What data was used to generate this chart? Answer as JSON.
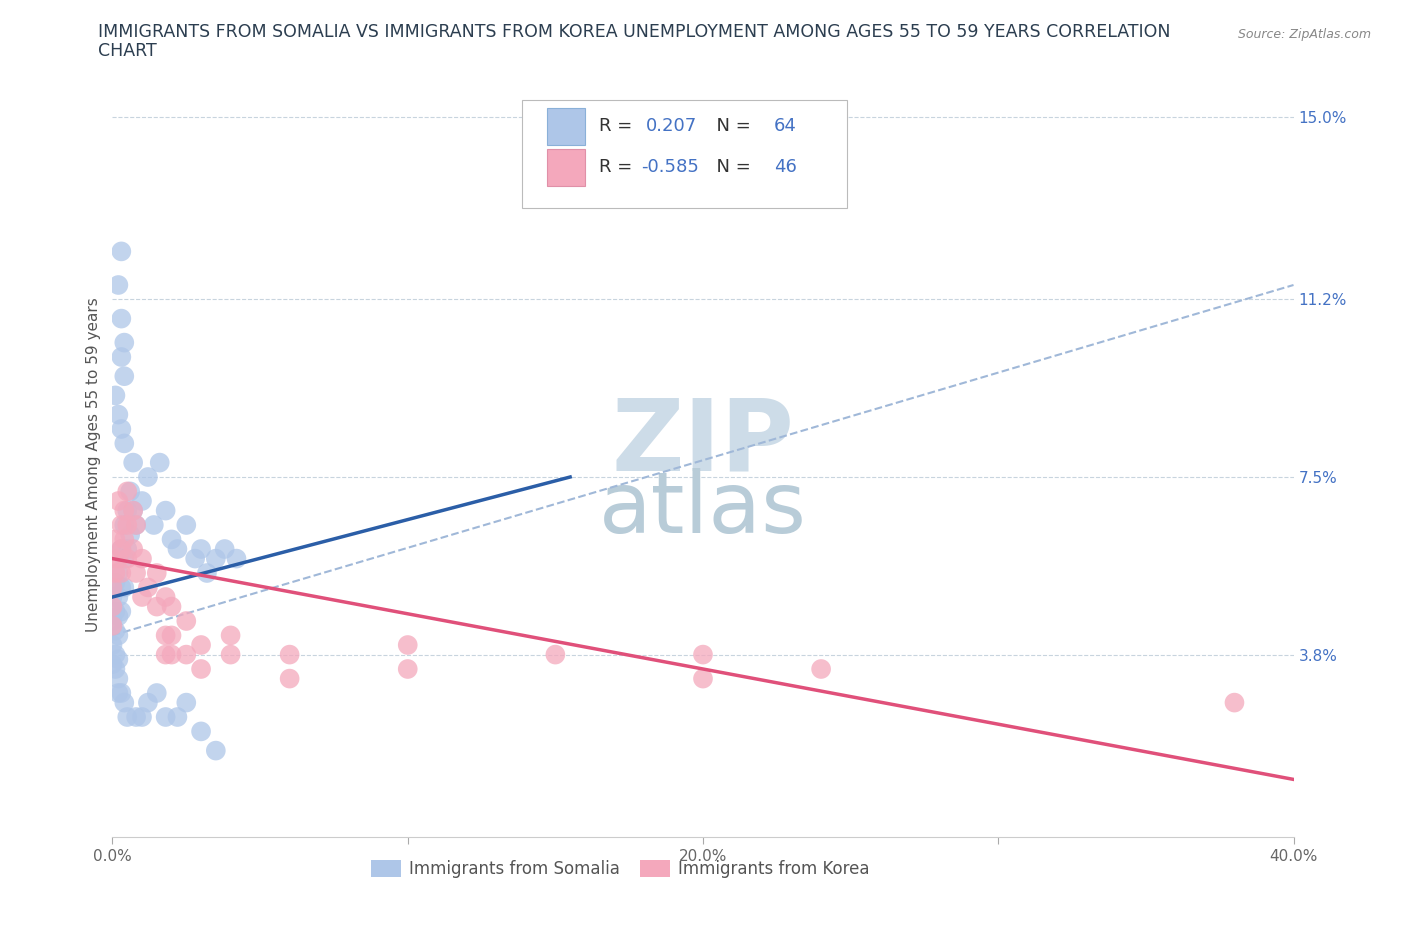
{
  "title_line1": "IMMIGRANTS FROM SOMALIA VS IMMIGRANTS FROM KOREA UNEMPLOYMENT AMONG AGES 55 TO 59 YEARS CORRELATION",
  "title_line2": "CHART",
  "source_text": "Source: ZipAtlas.com",
  "ylabel": "Unemployment Among Ages 55 to 59 years",
  "xlim": [
    0.0,
    0.4
  ],
  "ylim": [
    0.0,
    0.155
  ],
  "yticks": [
    0.038,
    0.075,
    0.112,
    0.15
  ],
  "ytick_labels": [
    "3.8%",
    "7.5%",
    "11.2%",
    "15.0%"
  ],
  "xticks": [
    0.0,
    0.1,
    0.2,
    0.3,
    0.4
  ],
  "xtick_labels": [
    "0.0%",
    "",
    "20.0%",
    "",
    "40.0%"
  ],
  "somalia_color": "#aec6e8",
  "korea_color": "#f4a8bc",
  "somalia_line_color": "#2b5ea7",
  "korea_line_color": "#e0507a",
  "dashed_line_color": "#a0b8d8",
  "background_color": "#ffffff",
  "grid_color": "#c8d4de",
  "watermark_zip_color": "#cddce8",
  "watermark_atlas_color": "#b8ccd8",
  "somalia_points": [
    [
      0.0,
      0.05
    ],
    [
      0.0,
      0.045
    ],
    [
      0.0,
      0.04
    ],
    [
      0.0,
      0.036
    ],
    [
      0.001,
      0.053
    ],
    [
      0.001,
      0.047
    ],
    [
      0.001,
      0.043
    ],
    [
      0.001,
      0.038
    ],
    [
      0.002,
      0.055
    ],
    [
      0.002,
      0.05
    ],
    [
      0.002,
      0.046
    ],
    [
      0.002,
      0.042
    ],
    [
      0.002,
      0.037
    ],
    [
      0.002,
      0.033
    ],
    [
      0.003,
      0.06
    ],
    [
      0.003,
      0.052
    ],
    [
      0.003,
      0.047
    ],
    [
      0.004,
      0.065
    ],
    [
      0.004,
      0.058
    ],
    [
      0.004,
      0.052
    ],
    [
      0.005,
      0.068
    ],
    [
      0.005,
      0.06
    ],
    [
      0.006,
      0.072
    ],
    [
      0.006,
      0.063
    ],
    [
      0.007,
      0.078
    ],
    [
      0.007,
      0.068
    ],
    [
      0.008,
      0.065
    ],
    [
      0.01,
      0.07
    ],
    [
      0.012,
      0.075
    ],
    [
      0.014,
      0.065
    ],
    [
      0.016,
      0.078
    ],
    [
      0.018,
      0.068
    ],
    [
      0.02,
      0.062
    ],
    [
      0.022,
      0.06
    ],
    [
      0.025,
      0.065
    ],
    [
      0.028,
      0.058
    ],
    [
      0.03,
      0.06
    ],
    [
      0.032,
      0.055
    ],
    [
      0.035,
      0.058
    ],
    [
      0.038,
      0.06
    ],
    [
      0.042,
      0.058
    ],
    [
      0.001,
      0.092
    ],
    [
      0.002,
      0.088
    ],
    [
      0.003,
      0.085
    ],
    [
      0.004,
      0.082
    ],
    [
      0.003,
      0.1
    ],
    [
      0.004,
      0.096
    ],
    [
      0.003,
      0.108
    ],
    [
      0.004,
      0.103
    ],
    [
      0.002,
      0.115
    ],
    [
      0.003,
      0.122
    ],
    [
      0.001,
      0.035
    ],
    [
      0.002,
      0.03
    ],
    [
      0.003,
      0.03
    ],
    [
      0.004,
      0.028
    ],
    [
      0.005,
      0.025
    ],
    [
      0.008,
      0.025
    ],
    [
      0.01,
      0.025
    ],
    [
      0.012,
      0.028
    ],
    [
      0.015,
      0.03
    ],
    [
      0.018,
      0.025
    ],
    [
      0.022,
      0.025
    ],
    [
      0.025,
      0.028
    ],
    [
      0.03,
      0.022
    ],
    [
      0.035,
      0.018
    ]
  ],
  "korea_points": [
    [
      0.0,
      0.058
    ],
    [
      0.0,
      0.052
    ],
    [
      0.0,
      0.048
    ],
    [
      0.0,
      0.044
    ],
    [
      0.001,
      0.062
    ],
    [
      0.001,
      0.055
    ],
    [
      0.002,
      0.07
    ],
    [
      0.002,
      0.058
    ],
    [
      0.003,
      0.065
    ],
    [
      0.003,
      0.06
    ],
    [
      0.003,
      0.055
    ],
    [
      0.004,
      0.068
    ],
    [
      0.004,
      0.062
    ],
    [
      0.005,
      0.072
    ],
    [
      0.005,
      0.065
    ],
    [
      0.005,
      0.058
    ],
    [
      0.007,
      0.068
    ],
    [
      0.007,
      0.06
    ],
    [
      0.008,
      0.065
    ],
    [
      0.008,
      0.055
    ],
    [
      0.01,
      0.058
    ],
    [
      0.01,
      0.05
    ],
    [
      0.012,
      0.052
    ],
    [
      0.015,
      0.055
    ],
    [
      0.015,
      0.048
    ],
    [
      0.018,
      0.05
    ],
    [
      0.018,
      0.042
    ],
    [
      0.018,
      0.038
    ],
    [
      0.02,
      0.048
    ],
    [
      0.02,
      0.042
    ],
    [
      0.02,
      0.038
    ],
    [
      0.025,
      0.045
    ],
    [
      0.025,
      0.038
    ],
    [
      0.03,
      0.04
    ],
    [
      0.03,
      0.035
    ],
    [
      0.04,
      0.042
    ],
    [
      0.04,
      0.038
    ],
    [
      0.06,
      0.038
    ],
    [
      0.06,
      0.033
    ],
    [
      0.1,
      0.04
    ],
    [
      0.1,
      0.035
    ],
    [
      0.15,
      0.038
    ],
    [
      0.2,
      0.038
    ],
    [
      0.2,
      0.033
    ],
    [
      0.24,
      0.035
    ],
    [
      0.38,
      0.028
    ]
  ],
  "somalia_trendline": [
    [
      0.0,
      0.05
    ],
    [
      0.155,
      0.075
    ]
  ],
  "korea_trendline": [
    [
      0.0,
      0.058
    ],
    [
      0.4,
      0.012
    ]
  ],
  "dashed_line": [
    [
      0.0,
      0.042
    ],
    [
      0.4,
      0.115
    ]
  ]
}
